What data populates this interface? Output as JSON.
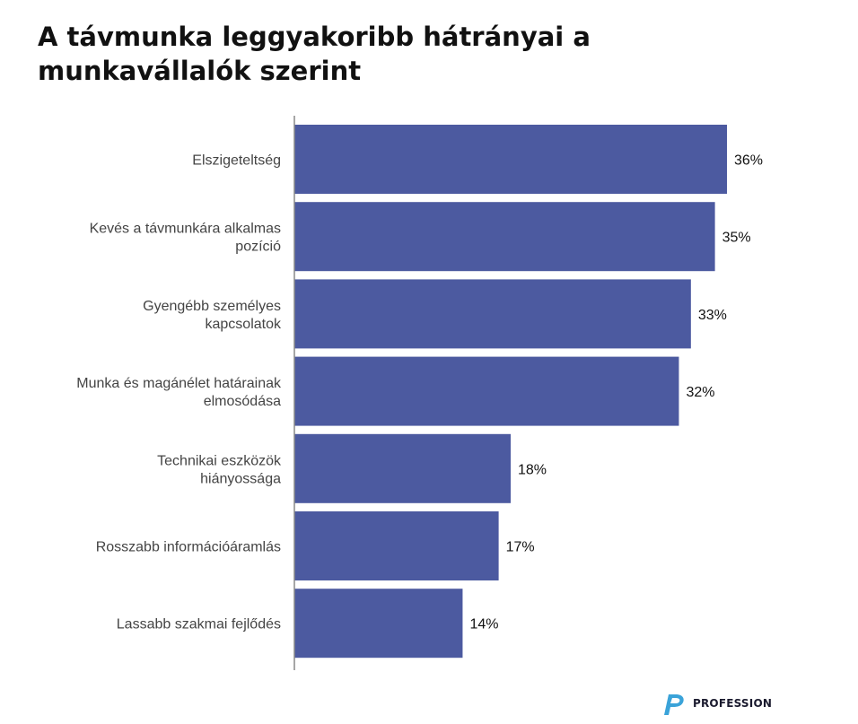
{
  "chart_data": {
    "type": "bar",
    "orientation": "horizontal",
    "title": "A távmunka leggyakoribb hátrányai a munkavállalók szerint",
    "categories": [
      [
        "Elszigeteltség"
      ],
      [
        "Kevés a távmunkára alkalmas",
        "pozíció"
      ],
      [
        "Gyengébb személyes",
        "kapcsolatok"
      ],
      [
        "Munka és magánélet határainak",
        "elmosódása"
      ],
      [
        "Technikai eszközök",
        "hiányossága"
      ],
      [
        "Rosszabb információáramlás"
      ],
      [
        "Lassabb szakmai fejlődés"
      ]
    ],
    "values": [
      36,
      35,
      33,
      32,
      18,
      17,
      14
    ],
    "value_labels": [
      "36%",
      "35%",
      "33%",
      "32%",
      "18%",
      "17%",
      "14%"
    ],
    "unit": "%",
    "xlim": [
      0,
      36
    ],
    "grid": false,
    "bar_color": "#4c5aa0",
    "axis_color": "#888888"
  },
  "brand": {
    "name": "PROFESSION",
    "logo_colors": [
      "#3aa3d9",
      "#2b4a9c"
    ]
  }
}
